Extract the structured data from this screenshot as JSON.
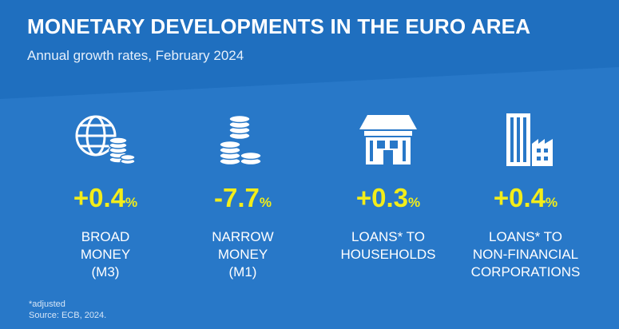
{
  "header": {
    "title": "MONETARY DEVELOPMENTS IN THE EURO AREA",
    "subtitle": "Annual growth rates, February 2024"
  },
  "colors": {
    "background": "#2878c8",
    "header_band": "#1f6fbf",
    "value": "#f2ed1a",
    "text": "#ffffff"
  },
  "metrics": [
    {
      "icon": "globe-coins-icon",
      "value": "+0.4",
      "unit": "%",
      "label_lines": [
        "BROAD",
        "MONEY",
        "(M3)"
      ]
    },
    {
      "icon": "coins-icon",
      "value": "-7.7",
      "unit": "%",
      "label_lines": [
        "NARROW",
        "MONEY",
        "(M1)"
      ]
    },
    {
      "icon": "house-icon",
      "value": "+0.3",
      "unit": "%",
      "label_lines": [
        "LOANS* TO",
        "HOUSEHOLDS"
      ]
    },
    {
      "icon": "buildings-icon",
      "value": "+0.4",
      "unit": "%",
      "label_lines": [
        "LOANS* TO",
        "NON-FINANCIAL",
        "CORPORATIONS"
      ]
    }
  ],
  "footnote": {
    "note": "*adjusted",
    "source": "Source: ECB, 2024."
  }
}
